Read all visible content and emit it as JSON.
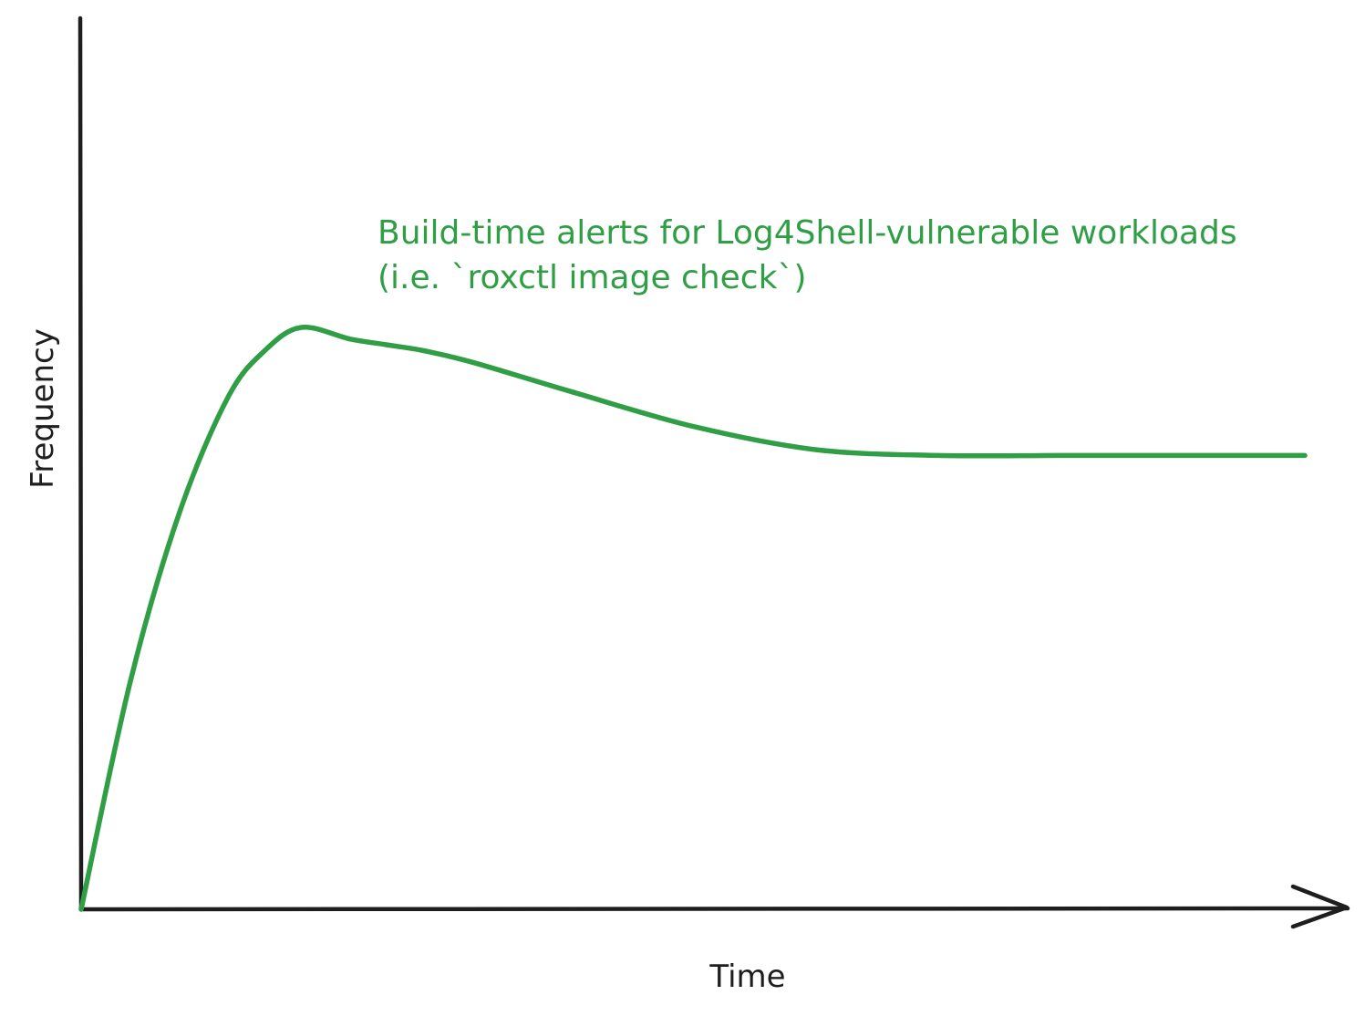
{
  "chart_data": {
    "type": "line",
    "title": "",
    "xlabel": "Time",
    "ylabel": "Frequency",
    "axes_ticks": "none",
    "grid": false,
    "legend": "none",
    "annotation": {
      "line1": "Build-time alerts for Log4Shell-vulnerable workloads",
      "line2": "(i.e. `roxctl image check`)"
    },
    "xlim": [
      0,
      100
    ],
    "ylim": [
      0,
      100
    ],
    "series": [
      {
        "color": "#2f9e44",
        "x": [
          0,
          4,
          8,
          12,
          15,
          18,
          22,
          25,
          28,
          32,
          40,
          50,
          60,
          70,
          80,
          90,
          100
        ],
        "y": [
          0,
          39,
          68,
          88,
          96,
          100,
          98,
          97,
          96,
          94,
          89,
          83,
          79,
          78,
          78,
          78,
          78
        ]
      }
    ],
    "colors": {
      "axes": "#1e1e1e",
      "series": "#2f9e44",
      "annotation": "#2f9e44"
    }
  }
}
